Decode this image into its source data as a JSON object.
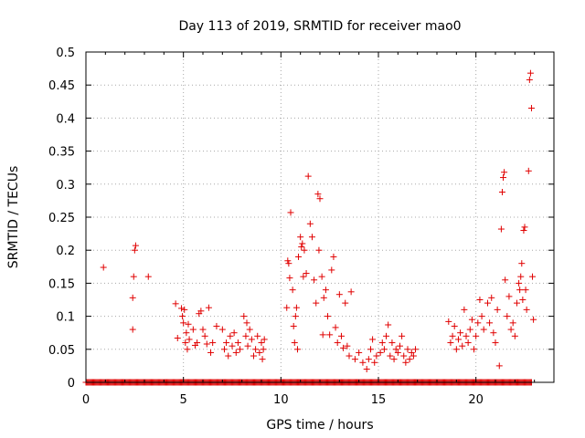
{
  "chart_data": {
    "type": "scatter",
    "title": "Day 113 of 2019, SRMTID for receiver mao0",
    "xlabel": "GPS time / hours",
    "ylabel": "SRMTID / TECUs",
    "xlim": [
      0,
      24
    ],
    "ylim": [
      0,
      0.5
    ],
    "xticks": [
      0,
      5,
      10,
      15,
      20
    ],
    "yticks": [
      0,
      0.05,
      0.1,
      0.15,
      0.2,
      0.25,
      0.3,
      0.35,
      0.4,
      0.45,
      0.5
    ],
    "xtick_labels": [
      "0",
      "5",
      "10",
      "15",
      "20"
    ],
    "ytick_labels": [
      "0",
      "0.05",
      "0.1",
      "0.15",
      "0.2",
      "0.25",
      "0.3",
      "0.35",
      "0.4",
      "0.45",
      "0.5"
    ],
    "grid": true,
    "marker": "+",
    "marker_color": "#e00000",
    "zero_band_x_range": [
      0,
      22.9
    ],
    "series": [
      {
        "name": "SRMTID",
        "points": [
          [
            0.9,
            0.174
          ],
          [
            2.4,
            0.08
          ],
          [
            2.4,
            0.128
          ],
          [
            2.45,
            0.16
          ],
          [
            2.5,
            0.2
          ],
          [
            2.55,
            0.207
          ],
          [
            3.2,
            0.16
          ],
          [
            4.6,
            0.119
          ],
          [
            4.7,
            0.067
          ],
          [
            4.9,
            0.112
          ],
          [
            4.95,
            0.1
          ],
          [
            5.0,
            0.09
          ],
          [
            5.05,
            0.11
          ],
          [
            5.1,
            0.06
          ],
          [
            5.15,
            0.075
          ],
          [
            5.2,
            0.05
          ],
          [
            5.25,
            0.088
          ],
          [
            5.3,
            0.065
          ],
          [
            5.5,
            0.08
          ],
          [
            5.6,
            0.056
          ],
          [
            5.7,
            0.06
          ],
          [
            5.8,
            0.104
          ],
          [
            5.9,
            0.108
          ],
          [
            6.0,
            0.08
          ],
          [
            6.1,
            0.07
          ],
          [
            6.2,
            0.058
          ],
          [
            6.3,
            0.113
          ],
          [
            6.4,
            0.045
          ],
          [
            6.5,
            0.06
          ],
          [
            6.7,
            0.085
          ],
          [
            7.0,
            0.08
          ],
          [
            7.1,
            0.05
          ],
          [
            7.2,
            0.06
          ],
          [
            7.3,
            0.04
          ],
          [
            7.4,
            0.07
          ],
          [
            7.5,
            0.055
          ],
          [
            7.6,
            0.075
          ],
          [
            7.7,
            0.045
          ],
          [
            7.8,
            0.06
          ],
          [
            7.9,
            0.05
          ],
          [
            8.1,
            0.1
          ],
          [
            8.2,
            0.07
          ],
          [
            8.25,
            0.09
          ],
          [
            8.3,
            0.055
          ],
          [
            8.4,
            0.08
          ],
          [
            8.5,
            0.065
          ],
          [
            8.6,
            0.04
          ],
          [
            8.7,
            0.05
          ],
          [
            8.8,
            0.07
          ],
          [
            8.9,
            0.045
          ],
          [
            9.0,
            0.06
          ],
          [
            9.05,
            0.035
          ],
          [
            9.1,
            0.05
          ],
          [
            9.15,
            0.065
          ],
          [
            10.3,
            0.113
          ],
          [
            10.35,
            0.184
          ],
          [
            10.4,
            0.18
          ],
          [
            10.45,
            0.158
          ],
          [
            10.5,
            0.257
          ],
          [
            10.6,
            0.14
          ],
          [
            10.65,
            0.085
          ],
          [
            10.7,
            0.06
          ],
          [
            10.75,
            0.1
          ],
          [
            10.8,
            0.113
          ],
          [
            10.85,
            0.05
          ],
          [
            10.9,
            0.19
          ],
          [
            11.0,
            0.22
          ],
          [
            11.05,
            0.205
          ],
          [
            11.1,
            0.21
          ],
          [
            11.15,
            0.16
          ],
          [
            11.2,
            0.2
          ],
          [
            11.3,
            0.165
          ],
          [
            11.4,
            0.312
          ],
          [
            11.5,
            0.24
          ],
          [
            11.6,
            0.22
          ],
          [
            11.7,
            0.155
          ],
          [
            11.8,
            0.12
          ],
          [
            11.9,
            0.285
          ],
          [
            11.95,
            0.2
          ],
          [
            12.0,
            0.278
          ],
          [
            12.1,
            0.16
          ],
          [
            12.15,
            0.072
          ],
          [
            12.2,
            0.128
          ],
          [
            12.3,
            0.14
          ],
          [
            12.4,
            0.1
          ],
          [
            12.5,
            0.072
          ],
          [
            12.6,
            0.17
          ],
          [
            12.7,
            0.19
          ],
          [
            12.8,
            0.083
          ],
          [
            12.9,
            0.06
          ],
          [
            13.0,
            0.133
          ],
          [
            13.1,
            0.07
          ],
          [
            13.2,
            0.052
          ],
          [
            13.3,
            0.12
          ],
          [
            13.4,
            0.055
          ],
          [
            13.5,
            0.04
          ],
          [
            13.6,
            0.137
          ],
          [
            13.8,
            0.035
          ],
          [
            14.0,
            0.045
          ],
          [
            14.2,
            0.03
          ],
          [
            14.4,
            0.02
          ],
          [
            14.5,
            0.035
          ],
          [
            14.6,
            0.05
          ],
          [
            14.7,
            0.065
          ],
          [
            14.8,
            0.03
          ],
          [
            14.9,
            0.04
          ],
          [
            15.1,
            0.045
          ],
          [
            15.2,
            0.06
          ],
          [
            15.3,
            0.05
          ],
          [
            15.4,
            0.07
          ],
          [
            15.5,
            0.087
          ],
          [
            15.6,
            0.04
          ],
          [
            15.7,
            0.06
          ],
          [
            15.8,
            0.035
          ],
          [
            15.9,
            0.05
          ],
          [
            16.0,
            0.045
          ],
          [
            16.1,
            0.055
          ],
          [
            16.2,
            0.07
          ],
          [
            16.3,
            0.04
          ],
          [
            16.4,
            0.03
          ],
          [
            16.5,
            0.05
          ],
          [
            16.6,
            0.035
          ],
          [
            16.7,
            0.045
          ],
          [
            16.8,
            0.04
          ],
          [
            16.9,
            0.05
          ],
          [
            18.6,
            0.092
          ],
          [
            18.7,
            0.06
          ],
          [
            18.8,
            0.07
          ],
          [
            18.9,
            0.085
          ],
          [
            19.0,
            0.05
          ],
          [
            19.1,
            0.065
          ],
          [
            19.2,
            0.075
          ],
          [
            19.3,
            0.055
          ],
          [
            19.4,
            0.11
          ],
          [
            19.5,
            0.07
          ],
          [
            19.6,
            0.06
          ],
          [
            19.7,
            0.08
          ],
          [
            19.8,
            0.095
          ],
          [
            19.9,
            0.05
          ],
          [
            20.0,
            0.07
          ],
          [
            20.1,
            0.09
          ],
          [
            20.2,
            0.125
          ],
          [
            20.3,
            0.1
          ],
          [
            20.4,
            0.08
          ],
          [
            20.6,
            0.12
          ],
          [
            20.7,
            0.09
          ],
          [
            20.8,
            0.128
          ],
          [
            20.9,
            0.075
          ],
          [
            21.0,
            0.06
          ],
          [
            21.1,
            0.11
          ],
          [
            21.2,
            0.025
          ],
          [
            21.3,
            0.232
          ],
          [
            21.35,
            0.288
          ],
          [
            21.4,
            0.31
          ],
          [
            21.45,
            0.318
          ],
          [
            21.5,
            0.155
          ],
          [
            21.6,
            0.1
          ],
          [
            21.7,
            0.13
          ],
          [
            21.8,
            0.08
          ],
          [
            21.9,
            0.09
          ],
          [
            22.0,
            0.07
          ],
          [
            22.1,
            0.12
          ],
          [
            22.2,
            0.15
          ],
          [
            22.25,
            0.14
          ],
          [
            22.3,
            0.16
          ],
          [
            22.35,
            0.18
          ],
          [
            22.4,
            0.125
          ],
          [
            22.45,
            0.23
          ],
          [
            22.5,
            0.235
          ],
          [
            22.55,
            0.14
          ],
          [
            22.6,
            0.11
          ],
          [
            22.7,
            0.32
          ],
          [
            22.75,
            0.458
          ],
          [
            22.8,
            0.468
          ],
          [
            22.85,
            0.415
          ],
          [
            22.9,
            0.16
          ],
          [
            22.95,
            0.095
          ]
        ]
      }
    ]
  }
}
